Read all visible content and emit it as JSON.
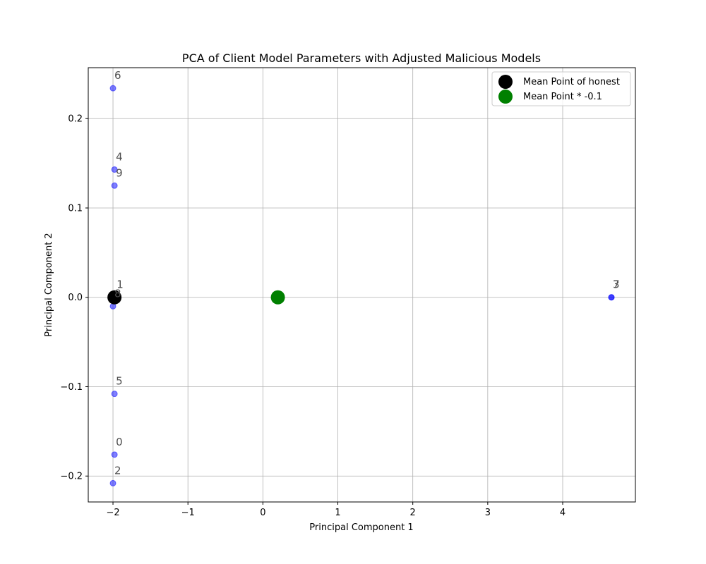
{
  "chart_data": {
    "type": "scatter",
    "title": "PCA of Client Model Parameters with Adjusted Malicious Models",
    "xlabel": "Principal Component 1",
    "ylabel": "Principal Component 2",
    "xlim": [
      -2.33,
      4.97
    ],
    "ylim": [
      -0.229,
      0.257
    ],
    "xticks": [
      -2,
      -1,
      0,
      1,
      2,
      3,
      4
    ],
    "yticks": [
      -0.2,
      -0.1,
      0.0,
      0.1,
      0.2
    ],
    "xtick_labels": [
      "−2",
      "−1",
      "0",
      "1",
      "2",
      "3",
      "4"
    ],
    "ytick_labels": [
      "−0.2",
      "−0.1",
      "0.0",
      "0.1",
      "0.2"
    ],
    "grid": true,
    "legend_location": "top-right",
    "points": [
      {
        "label": "0",
        "x": -1.98,
        "y": -0.176
      },
      {
        "label": "1",
        "x": -1.97,
        "y": 0.0
      },
      {
        "label": "2",
        "x": -2.0,
        "y": -0.208
      },
      {
        "label": "3",
        "x": 4.65,
        "y": 0.0
      },
      {
        "label": "4",
        "x": -1.98,
        "y": 0.143
      },
      {
        "label": "5",
        "x": -1.98,
        "y": -0.108
      },
      {
        "label": "6",
        "x": -2.0,
        "y": 0.234
      },
      {
        "label": "7",
        "x": 4.65,
        "y": 0.0
      },
      {
        "label": "8",
        "x": -2.0,
        "y": -0.01
      },
      {
        "label": "9",
        "x": -1.98,
        "y": 0.125
      }
    ],
    "point_color": "#0000ff",
    "mean_points": [
      {
        "name": "Mean Point of honest",
        "x": -1.98,
        "y": 0.0,
        "color": "#000000"
      },
      {
        "name": "Mean Point * -0.1",
        "x": 0.2,
        "y": 0.0,
        "color": "#008000"
      }
    ]
  }
}
